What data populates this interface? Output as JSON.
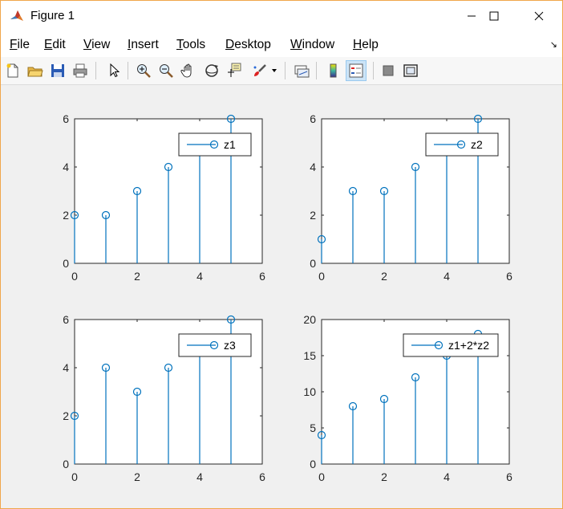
{
  "window": {
    "title": "Figure 1"
  },
  "menu": {
    "items": [
      {
        "mnemonic": "F",
        "rest": "ile"
      },
      {
        "mnemonic": "E",
        "rest": "dit"
      },
      {
        "mnemonic": "V",
        "rest": "iew"
      },
      {
        "mnemonic": "I",
        "rest": "nsert"
      },
      {
        "mnemonic": "T",
        "rest": "ools"
      },
      {
        "mnemonic": "D",
        "rest": "esktop"
      },
      {
        "mnemonic": "W",
        "rest": "indow"
      },
      {
        "mnemonic": "H",
        "rest": "elp"
      }
    ]
  },
  "toolbar": {
    "icons": [
      "new-figure-icon",
      "open-file-icon",
      "save-icon",
      "print-icon",
      "select-arrow-icon",
      "zoom-in-icon",
      "zoom-out-icon",
      "pan-hand-icon",
      "rotate-3d-icon",
      "data-cursor-icon",
      "brush-icon",
      "brush-dropdown-icon",
      "link-plot-icon",
      "insert-colorbar-icon",
      "insert-legend-icon",
      "hide-plot-tools-icon",
      "show-plot-tools-icon"
    ]
  },
  "colors": {
    "series": "#0072bd",
    "axes": "#262626",
    "figure_bg": "#f0f0f0",
    "active_tool_bg": "#cce4f7"
  },
  "chart_data": [
    {
      "type": "stem",
      "x": [
        0,
        1,
        2,
        3,
        4,
        5
      ],
      "series": [
        {
          "name": "z1",
          "values": [
            2,
            2,
            3,
            4,
            5,
            6
          ]
        }
      ],
      "xlim": [
        0,
        6
      ],
      "ylim": [
        0,
        6
      ],
      "xticks": [
        "0",
        "2",
        "4",
        "6"
      ],
      "yticks": [
        "0",
        "2",
        "4",
        "6"
      ],
      "legend": "top-right",
      "grid": false
    },
    {
      "type": "stem",
      "x": [
        0,
        1,
        2,
        3,
        4,
        5
      ],
      "series": [
        {
          "name": "z2",
          "values": [
            1,
            3,
            3,
            4,
            5,
            6
          ]
        }
      ],
      "xlim": [
        0,
        6
      ],
      "ylim": [
        0,
        6
      ],
      "xticks": [
        "0",
        "2",
        "4",
        "6"
      ],
      "yticks": [
        "0",
        "2",
        "4",
        "6"
      ],
      "legend": "top-right",
      "grid": false
    },
    {
      "type": "stem",
      "x": [
        0,
        1,
        2,
        3,
        4,
        5
      ],
      "series": [
        {
          "name": "z3",
          "values": [
            2,
            4,
            3,
            4,
            5,
            6
          ]
        }
      ],
      "xlim": [
        0,
        6
      ],
      "ylim": [
        0,
        6
      ],
      "xticks": [
        "0",
        "2",
        "4",
        "6"
      ],
      "yticks": [
        "0",
        "2",
        "4",
        "6"
      ],
      "legend": "top-right",
      "grid": false
    },
    {
      "type": "stem",
      "x": [
        0,
        1,
        2,
        3,
        4,
        5
      ],
      "series": [
        {
          "name": "z1+2*z2",
          "values": [
            4,
            8,
            9,
            12,
            15,
            18
          ]
        }
      ],
      "xlim": [
        0,
        6
      ],
      "ylim": [
        0,
        20
      ],
      "xticks": [
        "0",
        "2",
        "4",
        "6"
      ],
      "yticks": [
        "0",
        "5",
        "10",
        "15",
        "20"
      ],
      "legend": "top-right",
      "grid": false
    }
  ]
}
